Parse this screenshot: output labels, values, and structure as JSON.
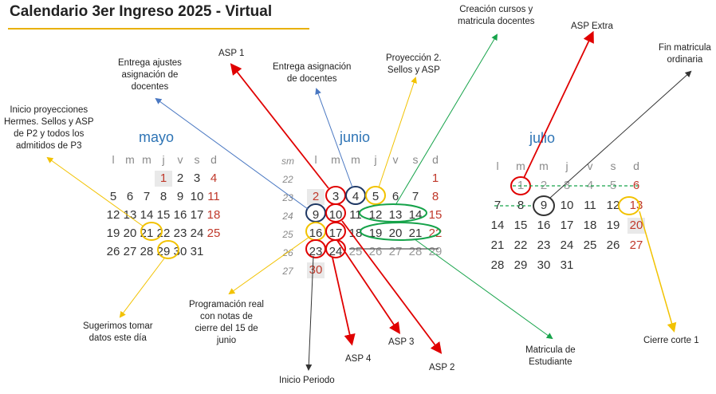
{
  "title": "Calendario 3er Ingreso 2025 - Virtual",
  "weekday_headers": [
    "l",
    "m",
    "m",
    "j",
    "v",
    "s",
    "d"
  ],
  "week_header_label": "sm",
  "months": {
    "mayo": {
      "name": "mayo",
      "rows": [
        [
          "",
          "",
          "",
          "1",
          "2",
          "3",
          "4"
        ],
        [
          "5",
          "6",
          "7",
          "8",
          "9",
          "10",
          "11"
        ],
        [
          "12",
          "13",
          "14",
          "15",
          "16",
          "17",
          "18"
        ],
        [
          "19",
          "20",
          "21",
          "22",
          "23",
          "24",
          "25"
        ],
        [
          "26",
          "27",
          "28",
          "29",
          "30",
          "31",
          ""
        ]
      ]
    },
    "junio": {
      "name": "junio",
      "week_numbers": [
        "22",
        "23",
        "24",
        "25",
        "26",
        "27"
      ],
      "rows": [
        [
          "",
          "",
          "",
          "",
          "",
          "",
          "1"
        ],
        [
          "2",
          "3",
          "4",
          "5",
          "6",
          "7",
          "8"
        ],
        [
          "9",
          "10",
          "11",
          "12",
          "13",
          "14",
          "15"
        ],
        [
          "16",
          "17",
          "18",
          "19",
          "20",
          "21",
          "22"
        ],
        [
          "23",
          "24",
          "25",
          "26",
          "27",
          "28",
          "29"
        ],
        [
          "30",
          "",
          "",
          "",
          "",
          "",
          ""
        ]
      ]
    },
    "julio": {
      "name": "julio",
      "rows": [
        [
          "",
          "1",
          "2",
          "3",
          "4",
          "5",
          "6"
        ],
        [
          "7",
          "8",
          "9",
          "10",
          "11",
          "12",
          "13"
        ],
        [
          "14",
          "15",
          "16",
          "17",
          "18",
          "19",
          "20"
        ],
        [
          "21",
          "22",
          "23",
          "24",
          "25",
          "26",
          "27"
        ],
        [
          "28",
          "29",
          "30",
          "31",
          "",
          "",
          ""
        ]
      ]
    }
  },
  "annotations": {
    "inicio_proyecciones": [
      "Inicio proyecciones",
      "Hermes. Sellos y ASP",
      "de P2 y todos los",
      "admitidos de P3"
    ],
    "entrega_ajustes": [
      "Entrega ajustes",
      "asignación de",
      "docentes"
    ],
    "asp1": [
      "ASP 1"
    ],
    "entrega_asignacion": [
      "Entrega asignación",
      "de docentes"
    ],
    "proyeccion2": [
      "Proyección 2.",
      "Sellos y ASP"
    ],
    "creacion_cursos": [
      "Creación cursos y",
      "matricula docentes"
    ],
    "asp_extra": [
      "ASP Extra"
    ],
    "fin_matricula": [
      "Fin matricula",
      "ordinaria"
    ],
    "sugerimos": [
      "Sugerimos tomar",
      "datos este día"
    ],
    "programacion_real": [
      "Programación real",
      "con notas de",
      "cierre del 15 de",
      "junio"
    ],
    "asp4": [
      "ASP 4"
    ],
    "asp3": [
      "ASP 3"
    ],
    "asp2": [
      "ASP 2"
    ],
    "inicio_periodo": [
      "Inicio Periodo"
    ],
    "matricula_estudiante": [
      "Matricula de",
      "Estudiante"
    ],
    "cierre_corte": [
      "Cierre corte 1"
    ]
  },
  "colors": {
    "red": "#e00000",
    "yellow": "#f2c200",
    "navy": "#1f3864",
    "green": "#16a34a",
    "blue_line": "#4a78c2",
    "dark": "#333333",
    "month_title": "#2e74b5",
    "title_underline": "#e8b000"
  }
}
